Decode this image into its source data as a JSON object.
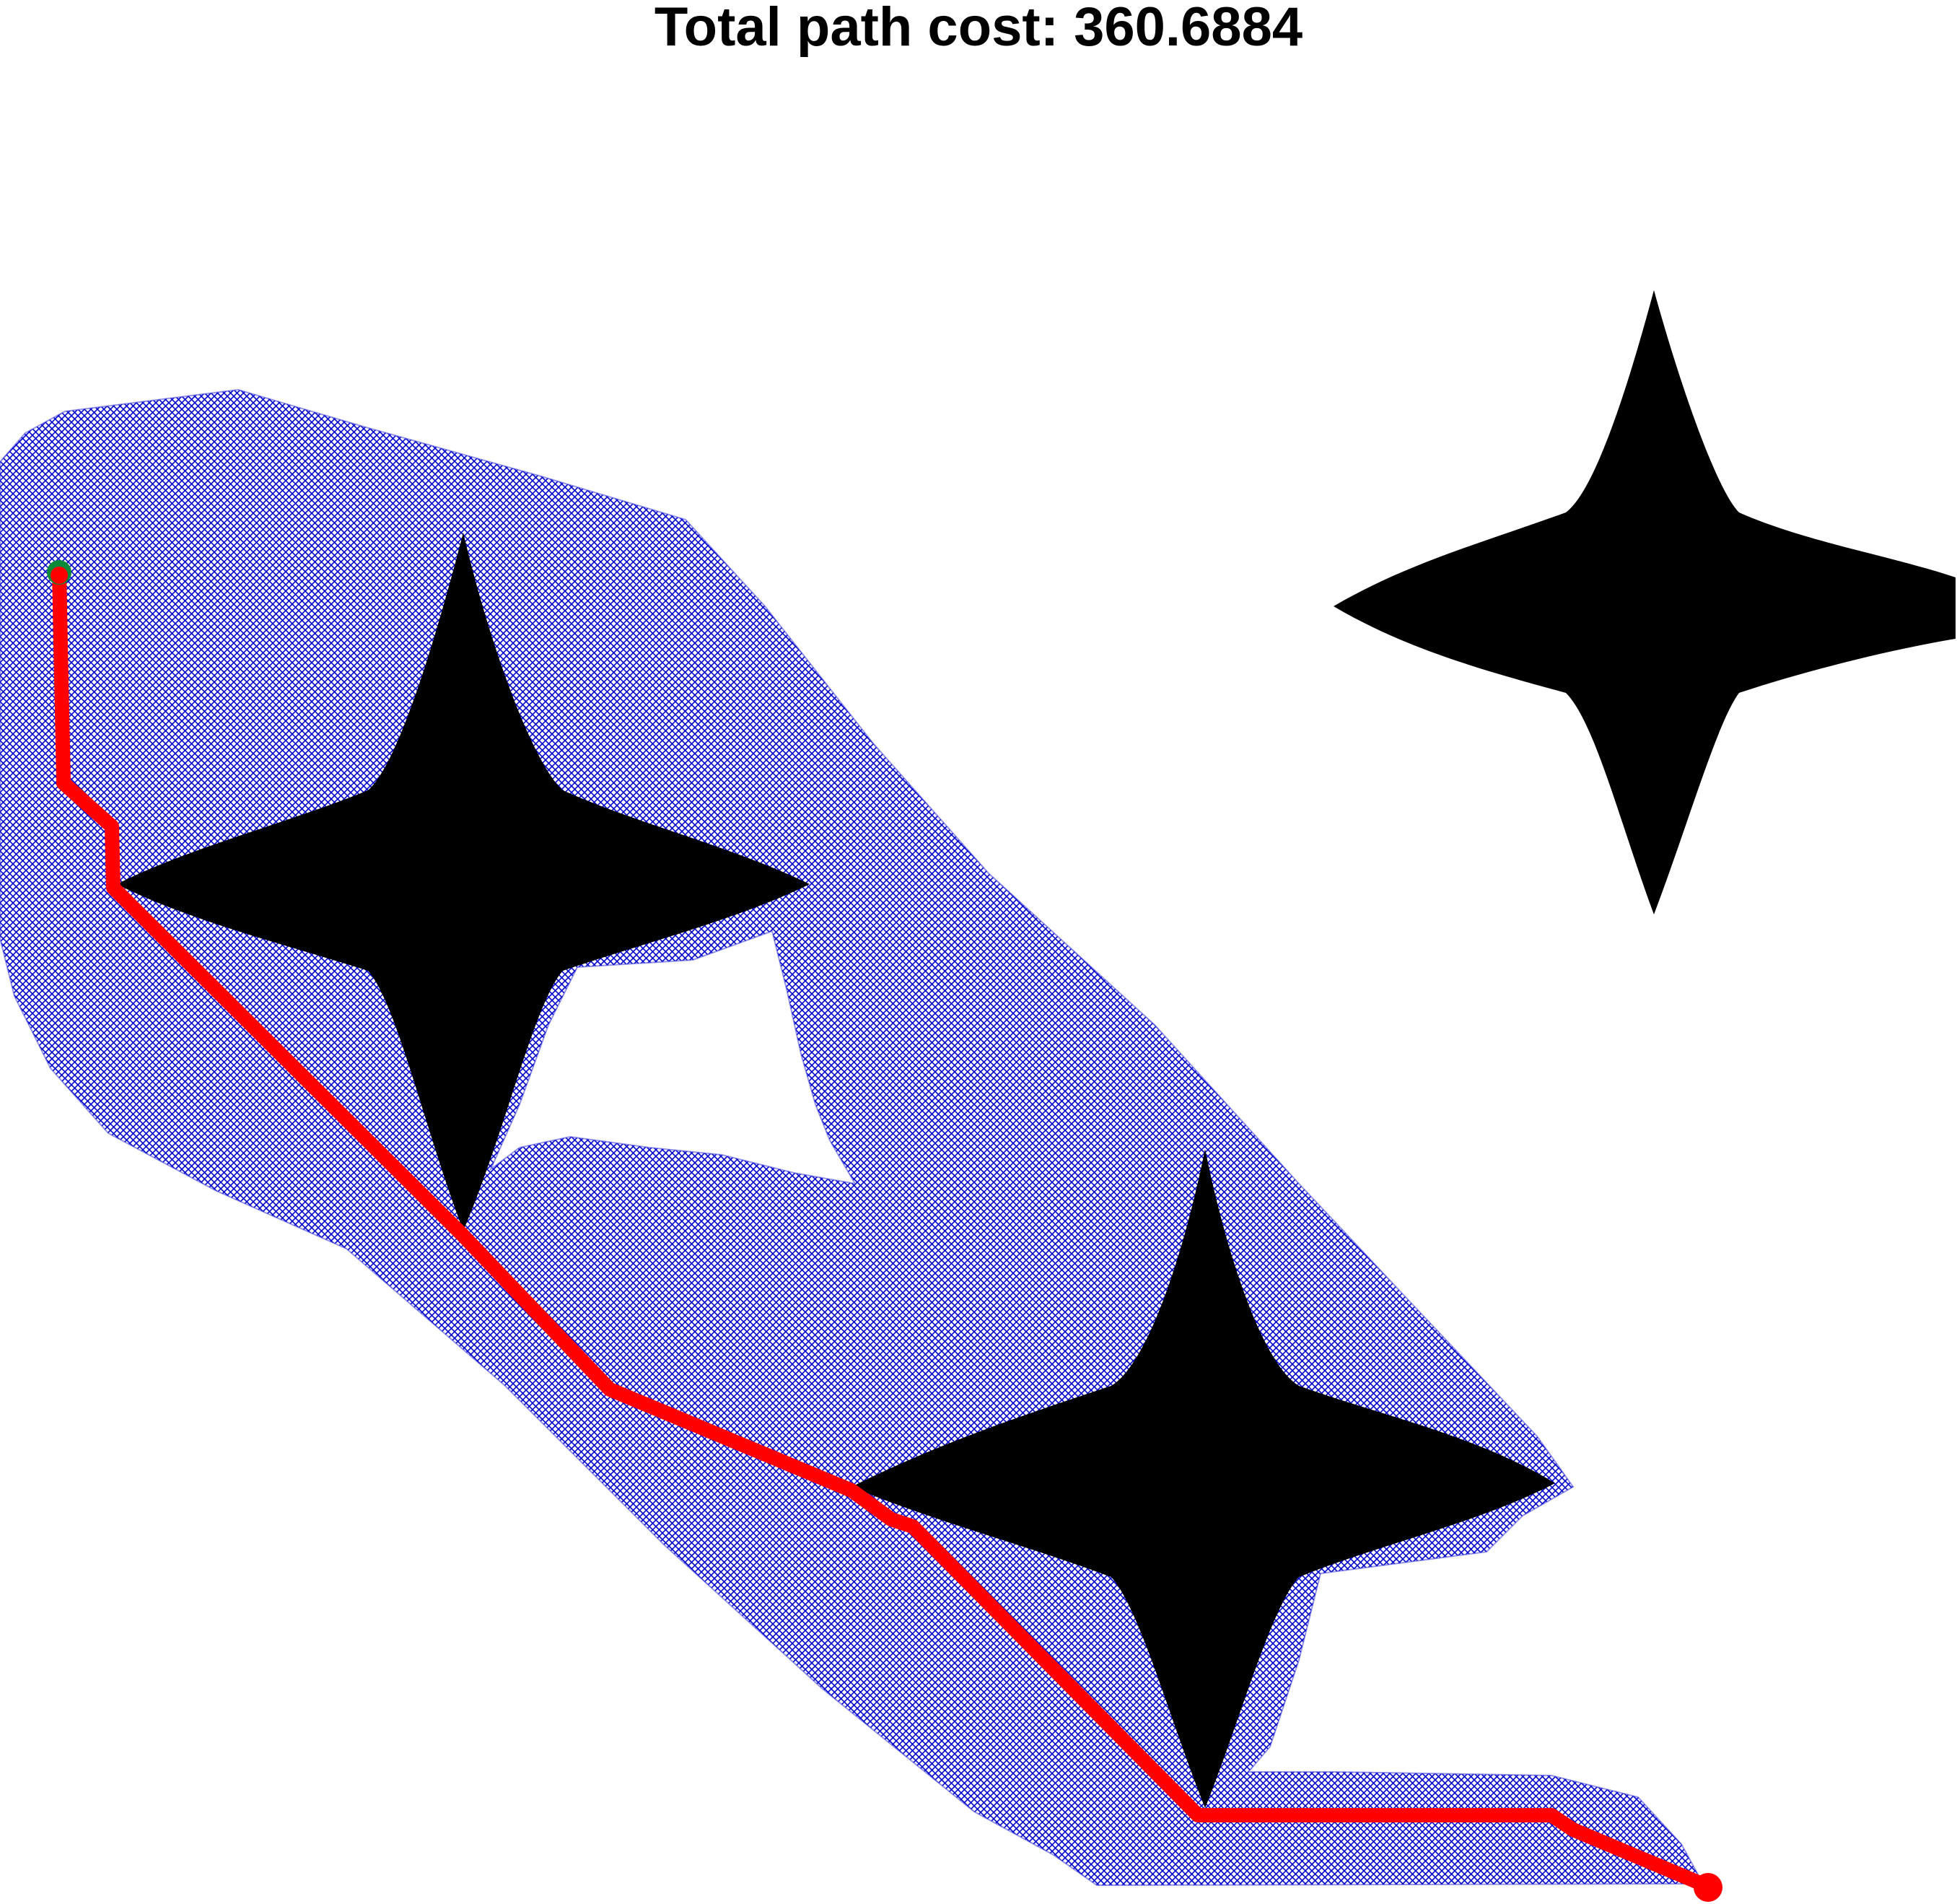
{
  "title": "Total path cost: 360.6884",
  "legend": "none",
  "colors": {
    "background": "#ffffff",
    "obstacle": "#000000",
    "explored_region": "#0000cc",
    "path": "#ff0000",
    "start_marker": "#0b8a3a",
    "goal_marker": "#ff0000"
  }
}
